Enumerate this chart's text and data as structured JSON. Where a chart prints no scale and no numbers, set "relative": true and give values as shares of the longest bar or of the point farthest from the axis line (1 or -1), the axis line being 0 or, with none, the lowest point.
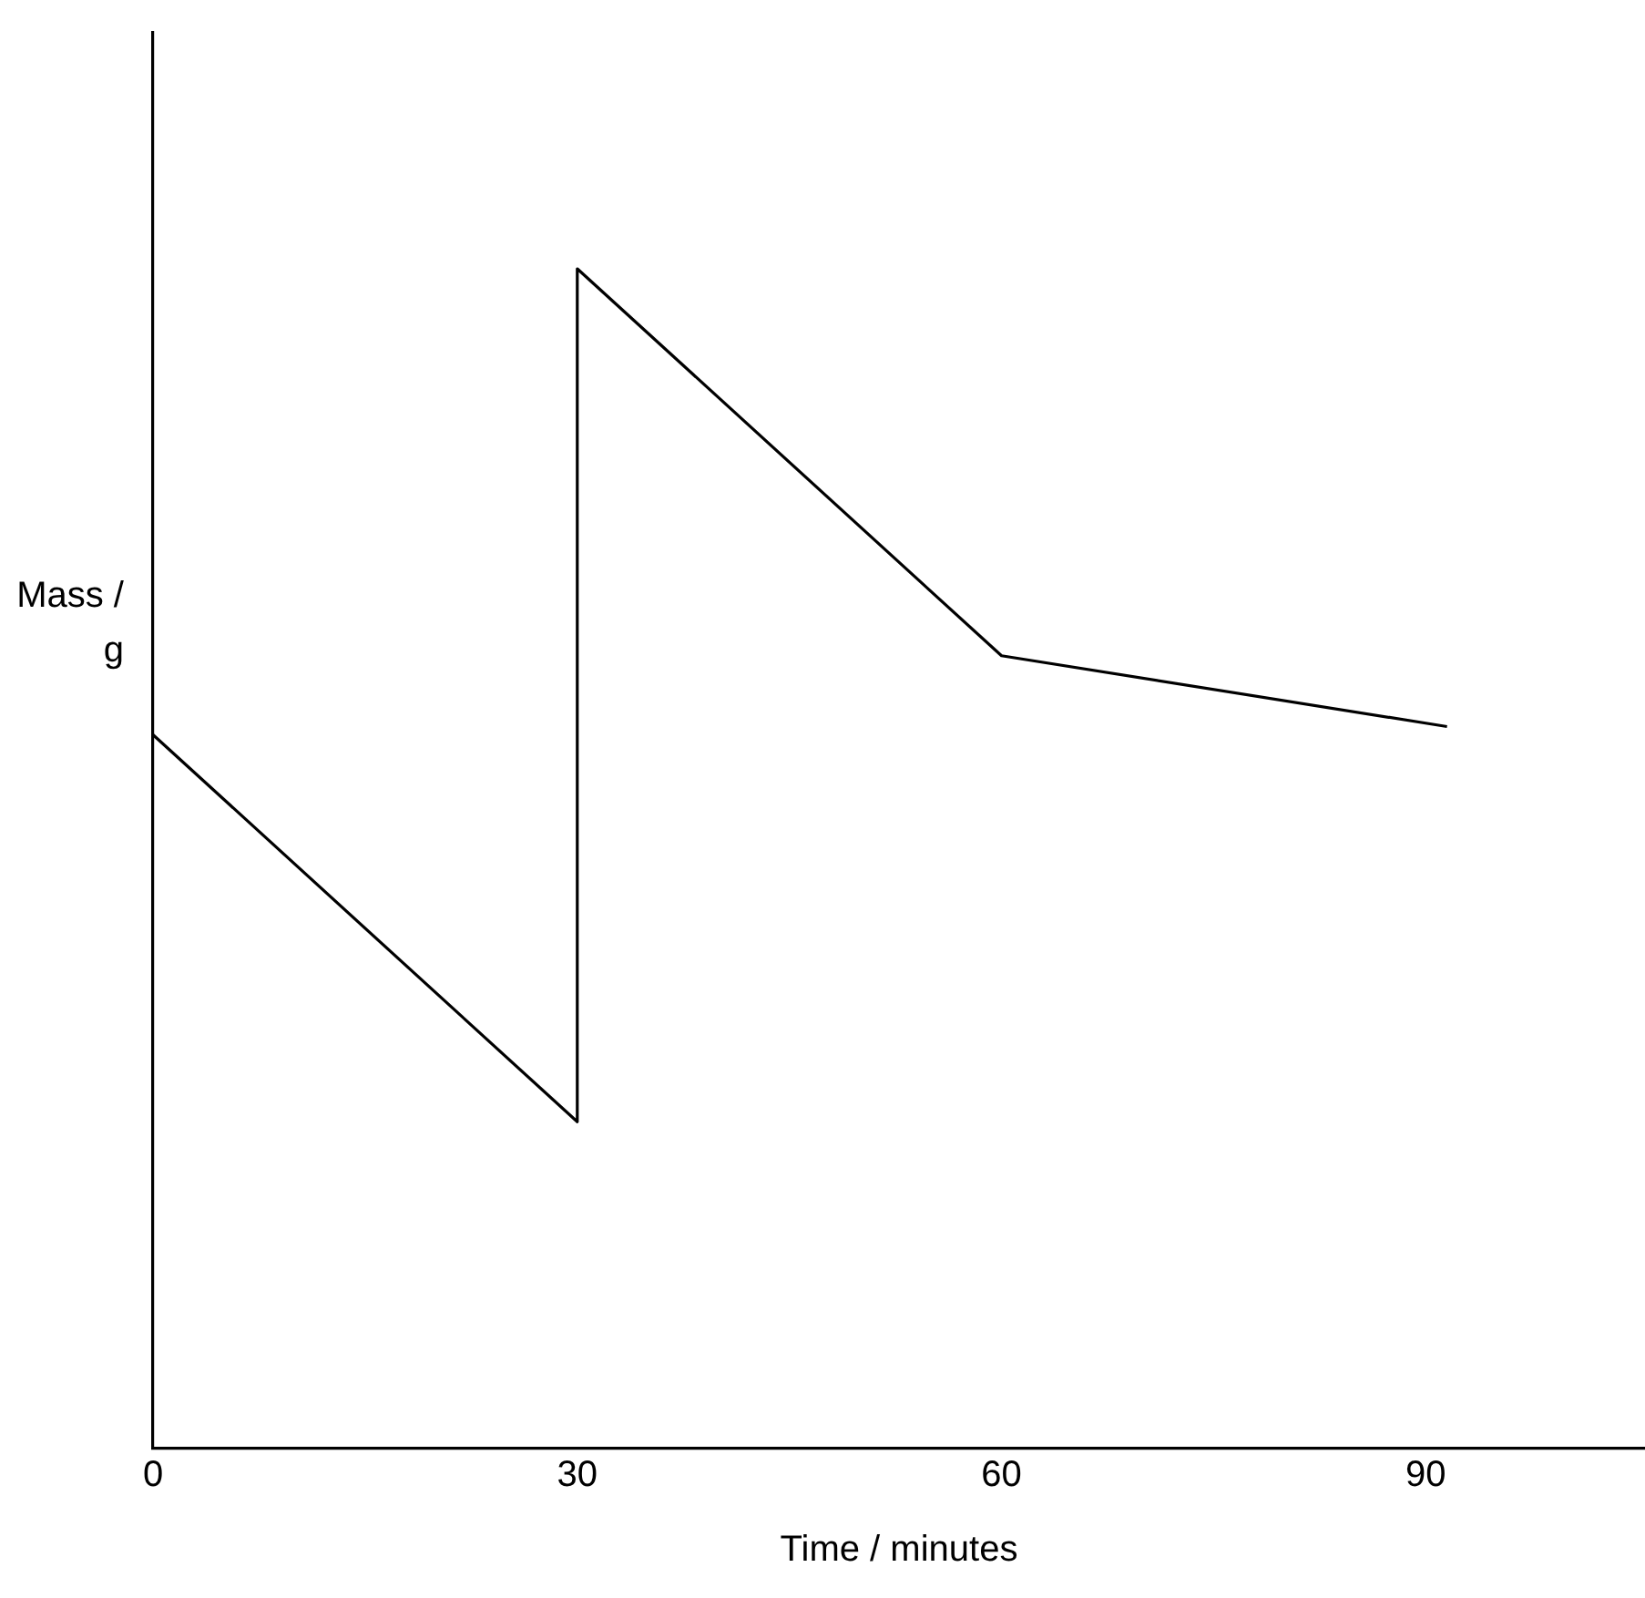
{
  "chart_data": {
    "type": "line",
    "relative": true,
    "xlabel": "Time / minutes",
    "ylabel": "Mass / g",
    "x": [
      0,
      30,
      30,
      60,
      91.5
    ],
    "values": [
      0.605,
      0.277,
      1,
      0.672,
      0.612
    ],
    "color": "#000000",
    "xlim": [
      0,
      105.5
    ],
    "xticks": [
      0,
      30,
      60,
      90
    ],
    "grid": false,
    "legend": false,
    "marker": "none",
    "line_style": "solid"
  }
}
